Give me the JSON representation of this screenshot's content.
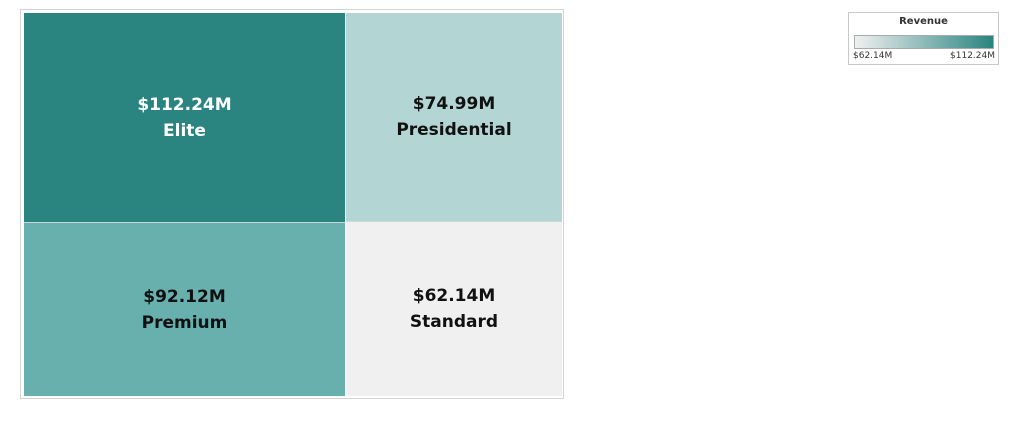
{
  "chart_data": {
    "type": "treemap",
    "title": "",
    "measure": "Revenue",
    "categories": [
      "Elite",
      "Presidential",
      "Premium",
      "Standard"
    ],
    "values": [
      112.24,
      74.99,
      92.12,
      62.14
    ],
    "unit": "$M",
    "tiles": [
      {
        "label": "Elite",
        "value": 112.24,
        "value_label": "$112.24M",
        "color": "#2a8480",
        "text_color": "#ffffff"
      },
      {
        "label": "Presidential",
        "value": 74.99,
        "value_label": "$74.99M",
        "color": "#b3d6d5",
        "text_color": "#111111"
      },
      {
        "label": "Premium",
        "value": 92.12,
        "value_label": "$92.12M",
        "color": "#67b0ad",
        "text_color": "#111111"
      },
      {
        "label": "Standard",
        "value": 62.14,
        "value_label": "$62.14M",
        "color": "#f0f0f0",
        "text_color": "#111111"
      }
    ],
    "legend": {
      "title": "Revenue",
      "min_label": "$62.14M",
      "max_label": "$112.24M",
      "min": 62.14,
      "max": 112.24,
      "color_low": "#f0f0f0",
      "color_high": "#2a8480",
      "placement": "top-right"
    }
  }
}
